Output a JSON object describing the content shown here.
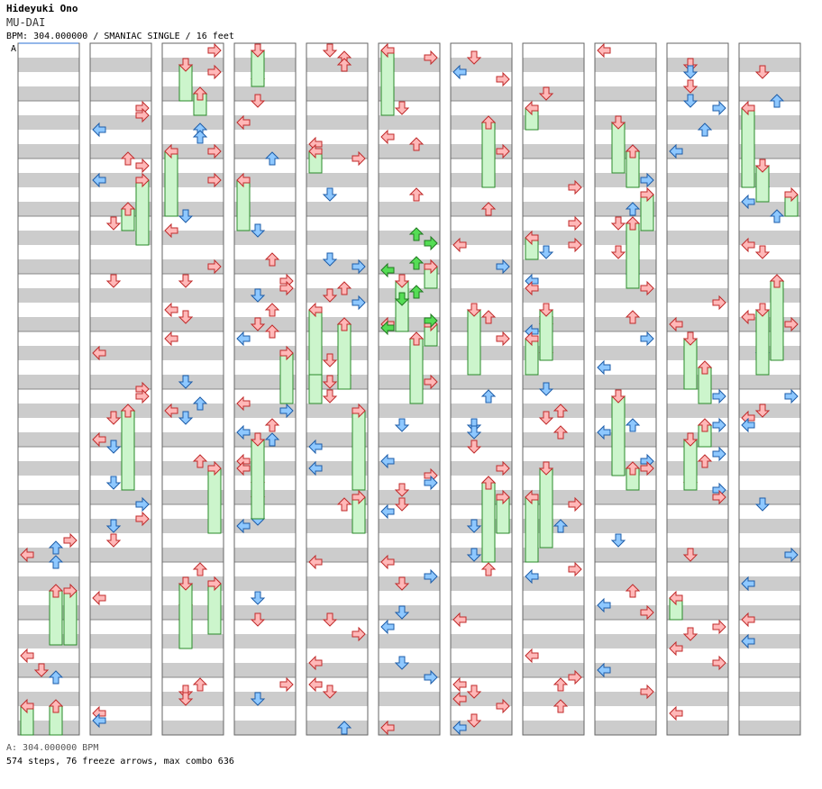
{
  "header": {
    "artist": "Hideyuki Ono",
    "title": "MU-DAI",
    "bpm_line": "BPM: 304.000000 / SMANIAC SINGLE / 16 feet",
    "section_marker": "A"
  },
  "footer": {
    "bpm_label": "A: 304.000000 BPM",
    "stats": "574 steps, 76 freeze arrows, max combo 636"
  },
  "colors": {
    "red_fill": "#ffb8b8",
    "red_stroke": "#c02a2a",
    "blue_fill": "#8ec8ff",
    "blue_stroke": "#1c5ca8",
    "green_fill": "#55dd55",
    "green_stroke": "#207820",
    "freeze_fill": "#ccf5cc",
    "freeze_stroke": "#2a8a2a",
    "stripe": "#cccccc",
    "marker": "#2a6fd6"
  },
  "chart_data": {
    "type": "step-chart",
    "columns": 11,
    "lanes": [
      "left",
      "down",
      "up",
      "right"
    ],
    "freeze_count": 76,
    "step_count": 574,
    "max_combo": 636
  }
}
